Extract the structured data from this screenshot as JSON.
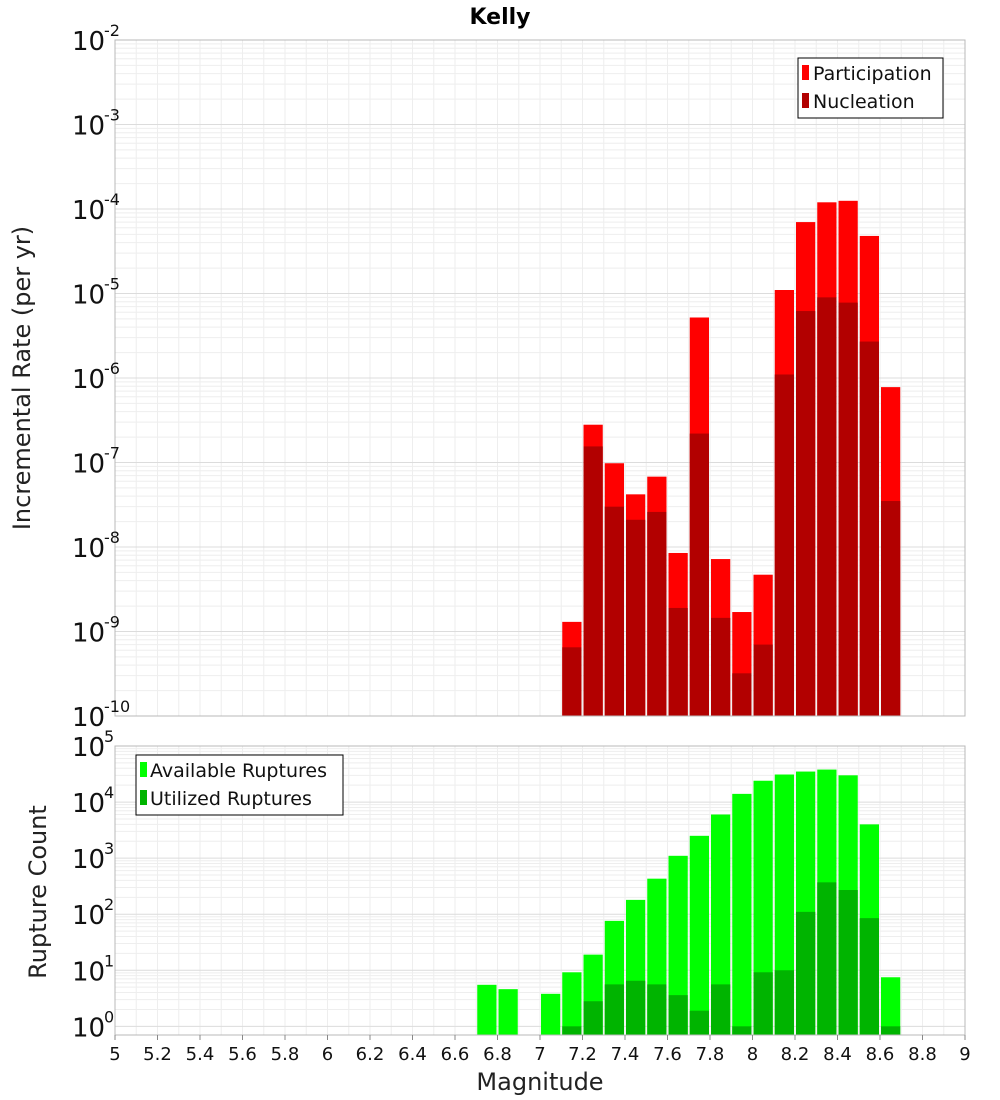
{
  "chart_data": [
    {
      "type": "bar",
      "title": "Kelly",
      "ylabel": "Incremental Rate (per yr)",
      "xlabel": "",
      "xlim": [
        5,
        9
      ],
      "ylim": [
        1e-10,
        0.01
      ],
      "yscale": "log",
      "grid": true,
      "legend_position": "top-right",
      "overlay": true,
      "x": [
        7.15,
        7.25,
        7.35,
        7.45,
        7.55,
        7.65,
        7.75,
        7.85,
        7.95,
        8.05,
        8.15,
        8.25,
        8.35,
        8.45,
        8.55,
        8.65
      ],
      "series": [
        {
          "name": "Participation",
          "color": "#ff0000",
          "values": [
            1.3e-09,
            2.8e-07,
            9.8e-08,
            4.2e-08,
            6.8e-08,
            8.5e-09,
            5.2e-06,
            7.2e-09,
            1.7e-09,
            4.7e-09,
            1.1e-05,
            7e-05,
            0.00012,
            0.000125,
            4.8e-05,
            7.8e-07
          ]
        },
        {
          "name": "Nucleation",
          "color": "#b20000",
          "values": [
            6.5e-10,
            1.55e-07,
            3e-08,
            2.1e-08,
            2.6e-08,
            1.9e-09,
            2.2e-07,
            1.45e-09,
            3.2e-10,
            7e-10,
            1.1e-06,
            6.2e-06,
            9e-06,
            7.8e-06,
            2.7e-06,
            3.5e-08
          ]
        }
      ]
    },
    {
      "type": "bar",
      "title": "",
      "ylabel": "Rupture Count",
      "xlabel": "Magnitude",
      "xlim": [
        5,
        9
      ],
      "ylim": [
        0.7,
        100000.0
      ],
      "yscale": "log",
      "grid": true,
      "legend_position": "top-left",
      "overlay": true,
      "x": [
        6.75,
        6.85,
        7.05,
        7.15,
        7.25,
        7.35,
        7.45,
        7.55,
        7.65,
        7.75,
        7.85,
        7.95,
        8.05,
        8.15,
        8.25,
        8.35,
        8.45,
        8.55,
        8.65
      ],
      "series": [
        {
          "name": "Available Ruptures",
          "color": "#00ff00",
          "values": [
            5.5,
            4.6,
            3.8,
            9.2,
            19,
            76,
            180,
            430,
            1100,
            2500,
            6000,
            14000,
            24000,
            31000,
            35000,
            38000,
            30000,
            4000,
            7.5
          ]
        },
        {
          "name": "Utilized Ruptures",
          "color": "#00b400",
          "values": [
            0,
            0,
            0,
            1,
            2.8,
            5.6,
            6.5,
            5.6,
            3.6,
            1.9,
            5.6,
            1,
            9.2,
            10,
            110,
            370,
            270,
            85,
            1
          ]
        }
      ]
    }
  ],
  "xticks": [
    "5",
    "5.2",
    "5.4",
    "5.6",
    "5.8",
    "6",
    "6.2",
    "6.4",
    "6.6",
    "6.8",
    "7",
    "7.2",
    "7.4",
    "7.6",
    "7.8",
    "8",
    "8.2",
    "8.4",
    "8.6",
    "8.8",
    "9"
  ],
  "top_yticks": [
    {
      "base": "10",
      "exp": "-10"
    },
    {
      "base": "10",
      "exp": "-9"
    },
    {
      "base": "10",
      "exp": "-8"
    },
    {
      "base": "10",
      "exp": "-7"
    },
    {
      "base": "10",
      "exp": "-6"
    },
    {
      "base": "10",
      "exp": "-5"
    },
    {
      "base": "10",
      "exp": "-4"
    },
    {
      "base": "10",
      "exp": "-3"
    },
    {
      "base": "10",
      "exp": "-2"
    }
  ],
  "bottom_yticks": [
    {
      "base": "10",
      "exp": "0"
    },
    {
      "base": "10",
      "exp": "1"
    },
    {
      "base": "10",
      "exp": "2"
    },
    {
      "base": "10",
      "exp": "3"
    },
    {
      "base": "10",
      "exp": "4"
    },
    {
      "base": "10",
      "exp": "5"
    }
  ]
}
